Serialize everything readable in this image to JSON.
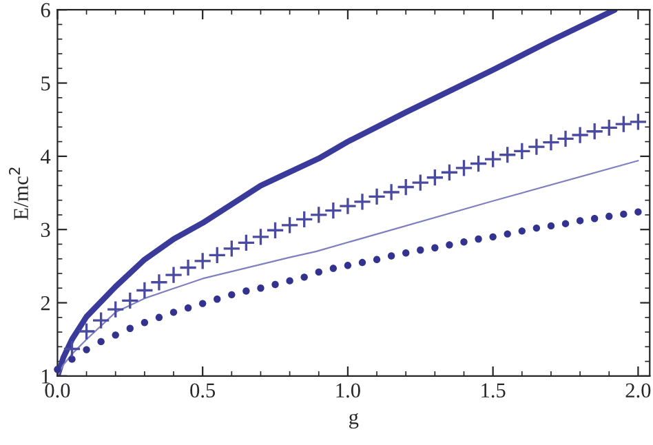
{
  "chart_data": {
    "type": "line",
    "xlabel": "g",
    "ylabel": "E/mc$^{2}$",
    "xlim": [
      0,
      2.04
    ],
    "ylim": [
      1,
      6
    ],
    "xticks": [
      {
        "value": 0,
        "label": "0.0"
      },
      0.5,
      {
        "value": 1,
        "label": "1.0"
      },
      1.5,
      {
        "value": 2,
        "label": "2.0"
      }
    ],
    "yticks": [
      1,
      2,
      3,
      4,
      5,
      6
    ],
    "grid": false,
    "series": [
      {
        "color": "#3a3a9a",
        "x": [
          0,
          0.02,
          0.05,
          0.1,
          0.2,
          0.3,
          0.4,
          0.5,
          0.7,
          0.9,
          1.0,
          1.2,
          1.5,
          1.7,
          1.92
        ],
        "values": [
          1.0,
          1.25,
          1.5,
          1.81,
          2.22,
          2.59,
          2.87,
          3.09,
          3.6,
          3.97,
          4.2,
          4.6,
          5.18,
          5.58,
          6.0
        ]
      },
      {
        "type": "scatter",
        "marker": "cross",
        "color": "#4a4aa0",
        "x": [
          0.05,
          0.1,
          0.15,
          0.2,
          0.25,
          0.3,
          0.35,
          0.4,
          0.45,
          0.5,
          0.55,
          0.6,
          0.65,
          0.7,
          0.75,
          0.8,
          0.85,
          0.9,
          0.95,
          1.0,
          1.05,
          1.1,
          1.15,
          1.2,
          1.25,
          1.3,
          1.35,
          1.4,
          1.45,
          1.5,
          1.55,
          1.6,
          1.65,
          1.7,
          1.75,
          1.8,
          1.85,
          1.9,
          1.95,
          2.0
        ],
        "values": [
          1.37,
          1.61,
          1.76,
          1.91,
          2.03,
          2.17,
          2.28,
          2.38,
          2.48,
          2.57,
          2.65,
          2.74,
          2.82,
          2.9,
          2.99,
          3.06,
          3.14,
          3.2,
          3.26,
          3.32,
          3.38,
          3.45,
          3.51,
          3.58,
          3.64,
          3.71,
          3.78,
          3.84,
          3.9,
          3.96,
          4.02,
          4.07,
          4.13,
          4.19,
          4.24,
          4.29,
          4.34,
          4.39,
          4.44,
          4.47
        ]
      },
      {
        "color": "#8080c0",
        "x": [
          0,
          0.02,
          0.05,
          0.1,
          0.2,
          0.3,
          0.5,
          0.8,
          0.89,
          1.5,
          2.0
        ],
        "values": [
          1.0,
          1.15,
          1.3,
          1.5,
          1.87,
          2.06,
          2.33,
          2.62,
          2.7,
          3.39,
          3.94
        ]
      },
      {
        "type": "scatter",
        "marker": "circle",
        "color": "#33338f",
        "x": [
          0,
          0.05,
          0.1,
          0.15,
          0.2,
          0.25,
          0.3,
          0.35,
          0.4,
          0.45,
          0.5,
          0.55,
          0.6,
          0.65,
          0.7,
          0.75,
          0.8,
          0.85,
          0.9,
          0.95,
          1.0,
          1.05,
          1.1,
          1.15,
          1.2,
          1.25,
          1.3,
          1.35,
          1.4,
          1.45,
          1.5,
          1.55,
          1.6,
          1.65,
          1.7,
          1.75,
          1.8,
          1.85,
          1.9,
          1.95,
          2.0
        ],
        "values": [
          1.09,
          1.23,
          1.36,
          1.47,
          1.56,
          1.65,
          1.73,
          1.8,
          1.87,
          1.93,
          1.99,
          2.05,
          2.11,
          2.16,
          2.2,
          2.25,
          2.3,
          2.35,
          2.42,
          2.47,
          2.51,
          2.55,
          2.59,
          2.64,
          2.68,
          2.72,
          2.75,
          2.79,
          2.83,
          2.87,
          2.9,
          2.94,
          2.98,
          3.02,
          3.05,
          3.08,
          3.12,
          3.15,
          3.18,
          3.21,
          3.24
        ]
      }
    ]
  }
}
